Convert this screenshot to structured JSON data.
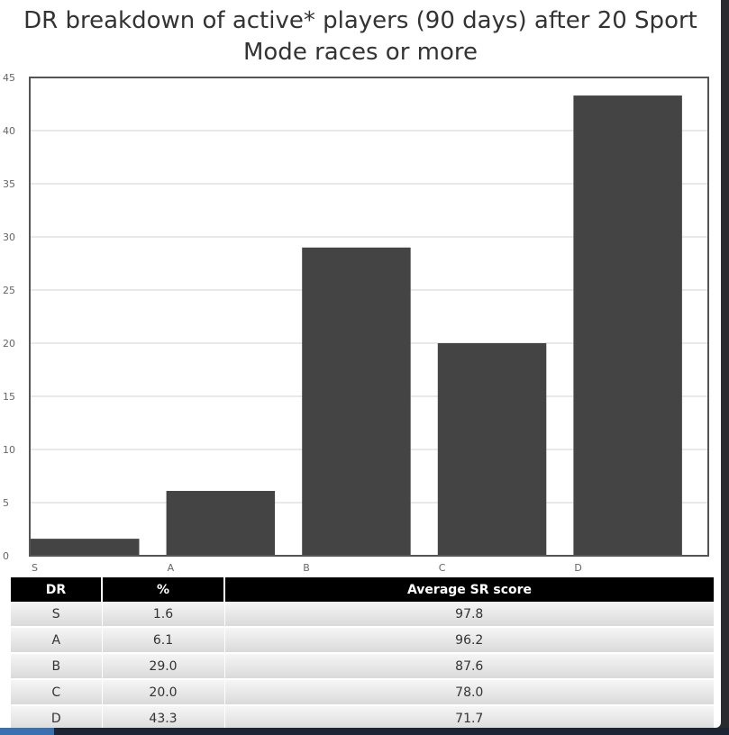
{
  "title_lines": [
    "DR breakdown of active* players (90 days) after 20 Sport",
    "Mode races or more"
  ],
  "chart_data": {
    "type": "bar",
    "title": "DR breakdown of active* players (90 days) after 20 Sport Mode races or more",
    "categories": [
      "S",
      "A",
      "B",
      "C",
      "D"
    ],
    "values": [
      1.6,
      6.1,
      29.0,
      20.0,
      43.3
    ],
    "ylim": [
      0,
      45
    ],
    "yticks": [
      0,
      5,
      10,
      15,
      20,
      25,
      30,
      35,
      40,
      45
    ],
    "grid": true,
    "bar_color": "#444444",
    "grid_color": "#e2e2e2",
    "axis_color": "#555555"
  },
  "table": {
    "headers": [
      "DR",
      "%",
      "Average SR score"
    ],
    "rows": [
      [
        "S",
        "1.6",
        "97.8"
      ],
      [
        "A",
        "6.1",
        "96.2"
      ],
      [
        "B",
        "29.0",
        "87.6"
      ],
      [
        "C",
        "20.0",
        "78.0"
      ],
      [
        "D",
        "43.3",
        "71.7"
      ]
    ]
  }
}
